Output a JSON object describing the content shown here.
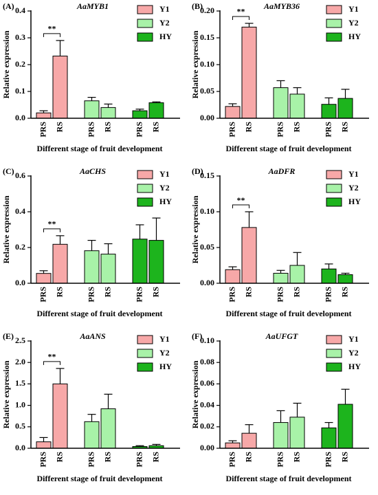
{
  "chart_data": [
    {
      "type": "bar",
      "panel": "(A)",
      "title": "AaMYB1",
      "ylabel": "Relative expression",
      "xlabel": "Different stage of fruit development",
      "categories": [
        "PRS",
        "RS"
      ],
      "ylim": [
        0,
        0.4
      ],
      "yticks": [
        {
          "value": 0,
          "label": "0.0"
        },
        0.1,
        0.2,
        0.3,
        0.4
      ],
      "series": [
        {
          "name": "Y1",
          "color": "#f7a8a8",
          "values": [
            0.02,
            0.232
          ],
          "errors": [
            0.008,
            0.058
          ]
        },
        {
          "name": "Y2",
          "color": "#a8f2a8",
          "values": [
            0.065,
            0.04
          ],
          "errors": [
            0.013,
            0.013
          ]
        },
        {
          "name": "HY",
          "color": "#1db41d",
          "values": [
            0.028,
            0.058
          ],
          "errors": [
            0.006,
            0.003
          ]
        }
      ],
      "annotation": "**"
    },
    {
      "type": "bar",
      "panel": "(B)",
      "title": "AaMYB36",
      "ylabel": "Relative expression",
      "xlabel": "Different stage of fruit development",
      "categories": [
        "PRS",
        "RS"
      ],
      "ylim": [
        0,
        0.2
      ],
      "yticks": [
        {
          "value": 0,
          "label": "0.00"
        },
        0.05,
        {
          "value": 0.1,
          "label": "0.10"
        },
        0.15,
        {
          "value": 0.2,
          "label": "0.20"
        }
      ],
      "series": [
        {
          "name": "Y1",
          "color": "#f7a8a8",
          "values": [
            0.022,
            0.17
          ],
          "errors": [
            0.005,
            0.007
          ]
        },
        {
          "name": "Y2",
          "color": "#a8f2a8",
          "values": [
            0.057,
            0.045
          ],
          "errors": [
            0.013,
            0.012
          ]
        },
        {
          "name": "HY",
          "color": "#1db41d",
          "values": [
            0.026,
            0.037
          ],
          "errors": [
            0.012,
            0.017
          ]
        }
      ],
      "annotation": "**"
    },
    {
      "type": "bar",
      "panel": "(C)",
      "title": "AaCHS",
      "ylabel": "Relative expression",
      "xlabel": "Different stage of fruit development",
      "categories": [
        "PRS",
        "RS"
      ],
      "ylim": [
        0,
        0.6
      ],
      "yticks": [
        {
          "value": 0,
          "label": "0.0"
        },
        0.2,
        0.4,
        0.6
      ],
      "series": [
        {
          "name": "Y1",
          "color": "#f7a8a8",
          "values": [
            0.055,
            0.218
          ],
          "errors": [
            0.015,
            0.048
          ]
        },
        {
          "name": "Y2",
          "color": "#a8f2a8",
          "values": [
            0.182,
            0.163
          ],
          "errors": [
            0.058,
            0.058
          ]
        },
        {
          "name": "HY",
          "color": "#1db41d",
          "values": [
            0.247,
            0.24
          ],
          "errors": [
            0.08,
            0.125
          ]
        }
      ],
      "annotation": "**"
    },
    {
      "type": "bar",
      "panel": "(D)",
      "title": "AaDFR",
      "ylabel": "Relative expression",
      "xlabel": "Different stage of fruit development",
      "categories": [
        "PRS",
        "RS"
      ],
      "ylim": [
        0,
        0.15
      ],
      "yticks": [
        {
          "value": 0,
          "label": "0.00"
        },
        0.05,
        {
          "value": 0.1,
          "label": "0.10"
        },
        0.15
      ],
      "series": [
        {
          "name": "Y1",
          "color": "#f7a8a8",
          "values": [
            0.019,
            0.078
          ],
          "errors": [
            0.004,
            0.022
          ]
        },
        {
          "name": "Y2",
          "color": "#a8f2a8",
          "values": [
            0.014,
            0.025
          ],
          "errors": [
            0.004,
            0.018
          ]
        },
        {
          "name": "HY",
          "color": "#1db41d",
          "values": [
            0.02,
            0.012
          ],
          "errors": [
            0.007,
            0.002
          ]
        }
      ],
      "annotation": "**"
    },
    {
      "type": "bar",
      "panel": "(E)",
      "title": "AaANS",
      "ylabel": "Relative expression",
      "xlabel": "Different stage of fruit development",
      "categories": [
        "PRS",
        "RS"
      ],
      "ylim": [
        0,
        2.5
      ],
      "yticks": [
        {
          "value": 0,
          "label": "0.0"
        },
        0.5,
        {
          "value": 1,
          "label": "1.0"
        },
        1.5,
        {
          "value": 2,
          "label": "2.0"
        },
        2.5
      ],
      "series": [
        {
          "name": "Y1",
          "color": "#f7a8a8",
          "values": [
            0.15,
            1.5
          ],
          "errors": [
            0.1,
            0.36
          ]
        },
        {
          "name": "Y2",
          "color": "#a8f2a8",
          "values": [
            0.62,
            0.92
          ],
          "errors": [
            0.17,
            0.34
          ]
        },
        {
          "name": "HY",
          "color": "#1db41d",
          "values": [
            0.04,
            0.06
          ],
          "errors": [
            0.02,
            0.03
          ]
        }
      ],
      "annotation": "**"
    },
    {
      "type": "bar",
      "panel": "(F)",
      "title": "AaUFGT",
      "ylabel": "Relative expression",
      "xlabel": "Different stage of fruit development",
      "categories": [
        "PRS",
        "RS"
      ],
      "ylim": [
        0,
        0.1
      ],
      "yticks": [
        {
          "value": 0,
          "label": "0.00"
        },
        0.02,
        0.04,
        0.06,
        0.08,
        {
          "value": 0.1,
          "label": "0.10"
        }
      ],
      "series": [
        {
          "name": "Y1",
          "color": "#f7a8a8",
          "values": [
            0.005,
            0.014
          ],
          "errors": [
            0.002,
            0.008
          ]
        },
        {
          "name": "Y2",
          "color": "#a8f2a8",
          "values": [
            0.024,
            0.029
          ],
          "errors": [
            0.011,
            0.013
          ]
        },
        {
          "name": "HY",
          "color": "#1db41d",
          "values": [
            0.019,
            0.041
          ],
          "errors": [
            0.005,
            0.014
          ]
        }
      ]
    }
  ]
}
